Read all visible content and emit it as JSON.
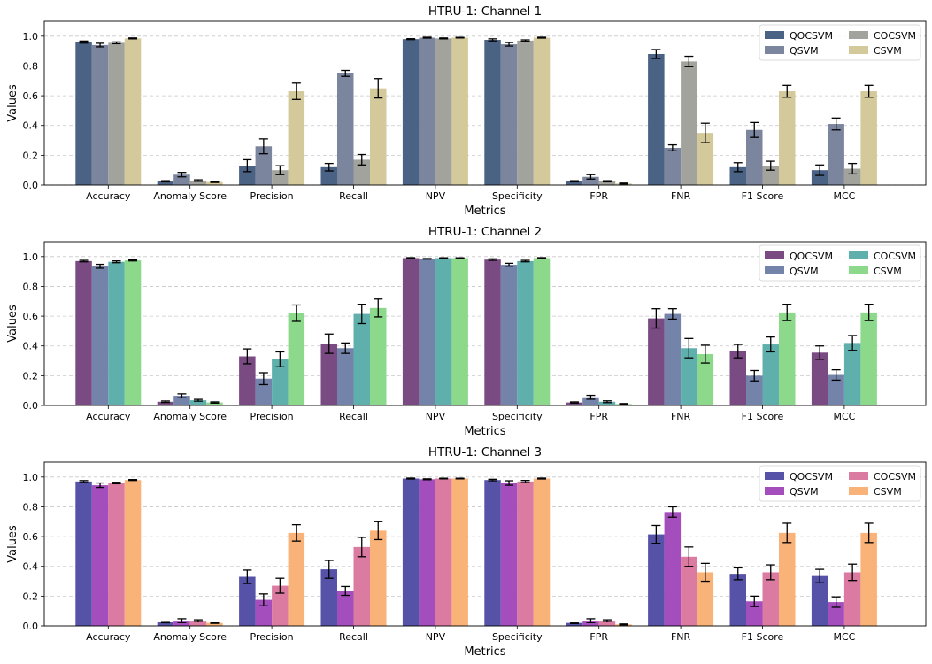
{
  "chart_data": [
    {
      "type": "bar",
      "title": "HTRU-1: Channel 1",
      "xlabel": "Metrics",
      "ylabel": "Values",
      "ylim": [
        0,
        1.1
      ],
      "yticks": [
        "0.0",
        "0.2",
        "0.4",
        "0.6",
        "0.8",
        "1.0"
      ],
      "grid": "y dashed",
      "legend_position": "top-right",
      "categories": [
        "Accuracy",
        "Anomaly Score",
        "Precision",
        "Recall",
        "NPV",
        "Specificity",
        "FPR",
        "FNR",
        "F1 Score",
        "MCC"
      ],
      "series": [
        {
          "name": "QOCSVM",
          "color": "#4a6283",
          "values": [
            0.96,
            0.025,
            0.13,
            0.12,
            0.98,
            0.975,
            0.025,
            0.88,
            0.12,
            0.1
          ],
          "errors": [
            0.007,
            0.004,
            0.04,
            0.025,
            0.003,
            0.007,
            0.004,
            0.03,
            0.03,
            0.035
          ]
        },
        {
          "name": "QSVM",
          "color": "#7c859e",
          "values": [
            0.94,
            0.07,
            0.26,
            0.75,
            0.99,
            0.945,
            0.055,
            0.25,
            0.37,
            0.41
          ],
          "errors": [
            0.012,
            0.015,
            0.05,
            0.02,
            0.003,
            0.012,
            0.015,
            0.02,
            0.05,
            0.04
          ]
        },
        {
          "name": "COCSVM",
          "color": "#a3a39e",
          "values": [
            0.955,
            0.03,
            0.1,
            0.17,
            0.985,
            0.97,
            0.025,
            0.83,
            0.13,
            0.11
          ],
          "errors": [
            0.006,
            0.005,
            0.03,
            0.035,
            0.003,
            0.005,
            0.004,
            0.035,
            0.03,
            0.035
          ]
        },
        {
          "name": "CSVM",
          "color": "#d4c99b",
          "values": [
            0.985,
            0.02,
            0.63,
            0.65,
            0.99,
            0.99,
            0.01,
            0.35,
            0.63,
            0.63
          ],
          "errors": [
            0.003,
            0.003,
            0.055,
            0.065,
            0.002,
            0.003,
            0.003,
            0.065,
            0.04,
            0.04
          ]
        }
      ]
    },
    {
      "type": "bar",
      "title": "HTRU-1: Channel 2",
      "xlabel": "Metrics",
      "ylabel": "Values",
      "ylim": [
        0,
        1.1
      ],
      "yticks": [
        "0.0",
        "0.2",
        "0.4",
        "0.6",
        "0.8",
        "1.0"
      ],
      "grid": "y dashed",
      "legend_position": "top-right",
      "categories": [
        "Accuracy",
        "Anomaly Score",
        "Precision",
        "Recall",
        "NPV",
        "Specificity",
        "FPR",
        "FNR",
        "F1 Score",
        "MCC"
      ],
      "series": [
        {
          "name": "QOCSVM",
          "color": "#7a4a82",
          "values": [
            0.97,
            0.025,
            0.33,
            0.415,
            0.99,
            0.98,
            0.02,
            0.585,
            0.365,
            0.355
          ],
          "errors": [
            0.005,
            0.005,
            0.05,
            0.065,
            0.003,
            0.005,
            0.004,
            0.065,
            0.045,
            0.045
          ]
        },
        {
          "name": "QSVM",
          "color": "#7483aa",
          "values": [
            0.935,
            0.065,
            0.18,
            0.385,
            0.985,
            0.945,
            0.055,
            0.615,
            0.2,
            0.205
          ],
          "errors": [
            0.013,
            0.013,
            0.04,
            0.035,
            0.002,
            0.01,
            0.013,
            0.035,
            0.035,
            0.035
          ]
        },
        {
          "name": "COCSVM",
          "color": "#5fb0ad",
          "values": [
            0.965,
            0.035,
            0.31,
            0.615,
            0.99,
            0.97,
            0.025,
            0.385,
            0.41,
            0.42
          ],
          "errors": [
            0.006,
            0.006,
            0.05,
            0.065,
            0.002,
            0.005,
            0.006,
            0.065,
            0.05,
            0.05
          ]
        },
        {
          "name": "CSVM",
          "color": "#8cd98c",
          "values": [
            0.975,
            0.02,
            0.62,
            0.655,
            0.99,
            0.99,
            0.01,
            0.345,
            0.625,
            0.625
          ],
          "errors": [
            0.004,
            0.004,
            0.055,
            0.06,
            0.002,
            0.003,
            0.003,
            0.06,
            0.055,
            0.055
          ]
        }
      ]
    },
    {
      "type": "bar",
      "title": "HTRU-1: Channel 3",
      "xlabel": "Metrics",
      "ylabel": "Values",
      "ylim": [
        0,
        1.1
      ],
      "yticks": [
        "0.0",
        "0.2",
        "0.4",
        "0.6",
        "0.8",
        "1.0"
      ],
      "grid": "y dashed",
      "legend_position": "top-right",
      "categories": [
        "Accuracy",
        "Anomaly Score",
        "Precision",
        "Recall",
        "NPV",
        "Specificity",
        "FPR",
        "FNR",
        "F1 Score",
        "MCC"
      ],
      "series": [
        {
          "name": "QOCSVM",
          "color": "#5552a8",
          "values": [
            0.97,
            0.025,
            0.33,
            0.38,
            0.99,
            0.98,
            0.02,
            0.615,
            0.35,
            0.335
          ],
          "errors": [
            0.006,
            0.004,
            0.045,
            0.06,
            0.003,
            0.005,
            0.004,
            0.06,
            0.04,
            0.045
          ]
        },
        {
          "name": "QSVM",
          "color": "#a44ebe",
          "values": [
            0.945,
            0.035,
            0.175,
            0.235,
            0.985,
            0.96,
            0.035,
            0.765,
            0.165,
            0.16
          ],
          "errors": [
            0.015,
            0.013,
            0.04,
            0.03,
            0.003,
            0.015,
            0.013,
            0.035,
            0.035,
            0.035
          ]
        },
        {
          "name": "COCSVM",
          "color": "#dc7ba1",
          "values": [
            0.96,
            0.035,
            0.27,
            0.53,
            0.99,
            0.97,
            0.035,
            0.465,
            0.36,
            0.36
          ],
          "errors": [
            0.005,
            0.006,
            0.05,
            0.065,
            0.002,
            0.007,
            0.006,
            0.065,
            0.05,
            0.055
          ]
        },
        {
          "name": "CSVM",
          "color": "#f9b277",
          "values": [
            0.98,
            0.02,
            0.625,
            0.64,
            0.99,
            0.99,
            0.01,
            0.36,
            0.625,
            0.625
          ],
          "errors": [
            0.003,
            0.003,
            0.055,
            0.06,
            0.002,
            0.003,
            0.003,
            0.06,
            0.065,
            0.065
          ]
        }
      ]
    }
  ]
}
